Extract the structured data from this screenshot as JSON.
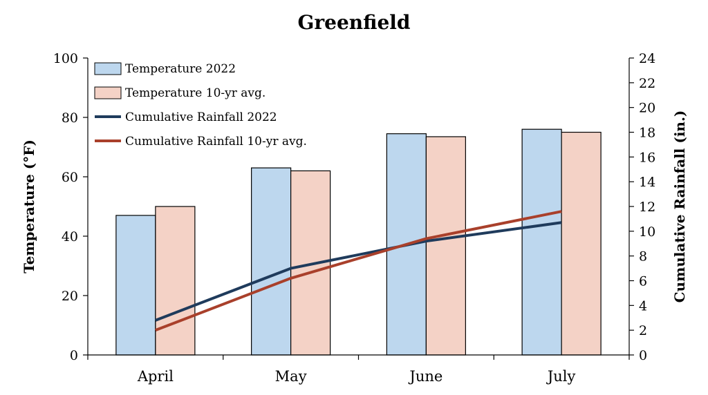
{
  "chart_data": {
    "type": "bar",
    "title": "Greenfield",
    "categories": [
      "April",
      "May",
      "June",
      "July"
    ],
    "ylabel": "Temperature (°F)",
    "ylabel_right": "Cumulative Rainfall (in.)",
    "ylim": [
      0,
      100
    ],
    "ylim_right": [
      0,
      24
    ],
    "yticks": [
      0,
      20,
      40,
      60,
      80,
      100
    ],
    "yticks_right": [
      0,
      2,
      4,
      6,
      8,
      10,
      12,
      14,
      16,
      18,
      20,
      22,
      24
    ],
    "legend_position": "top-left",
    "series": [
      {
        "name": "Temperature 2022",
        "kind": "bar",
        "axis": "left",
        "color": "#bdd7ee",
        "values": [
          47,
          63,
          74.5,
          76
        ]
      },
      {
        "name": "Temperature 10-yr avg.",
        "kind": "bar",
        "axis": "left",
        "color": "#f4d2c6",
        "values": [
          50,
          62,
          73.5,
          75
        ]
      },
      {
        "name": "Cumulative Rainfall 2022",
        "kind": "line",
        "axis": "right",
        "color": "#1f3b5c",
        "values": [
          2.8,
          7.0,
          9.2,
          10.7
        ]
      },
      {
        "name": "Cumulative Rainfall 10-yr avg.",
        "kind": "line",
        "axis": "right",
        "color": "#a9402b",
        "values": [
          2.0,
          6.2,
          9.4,
          11.6
        ]
      }
    ]
  }
}
